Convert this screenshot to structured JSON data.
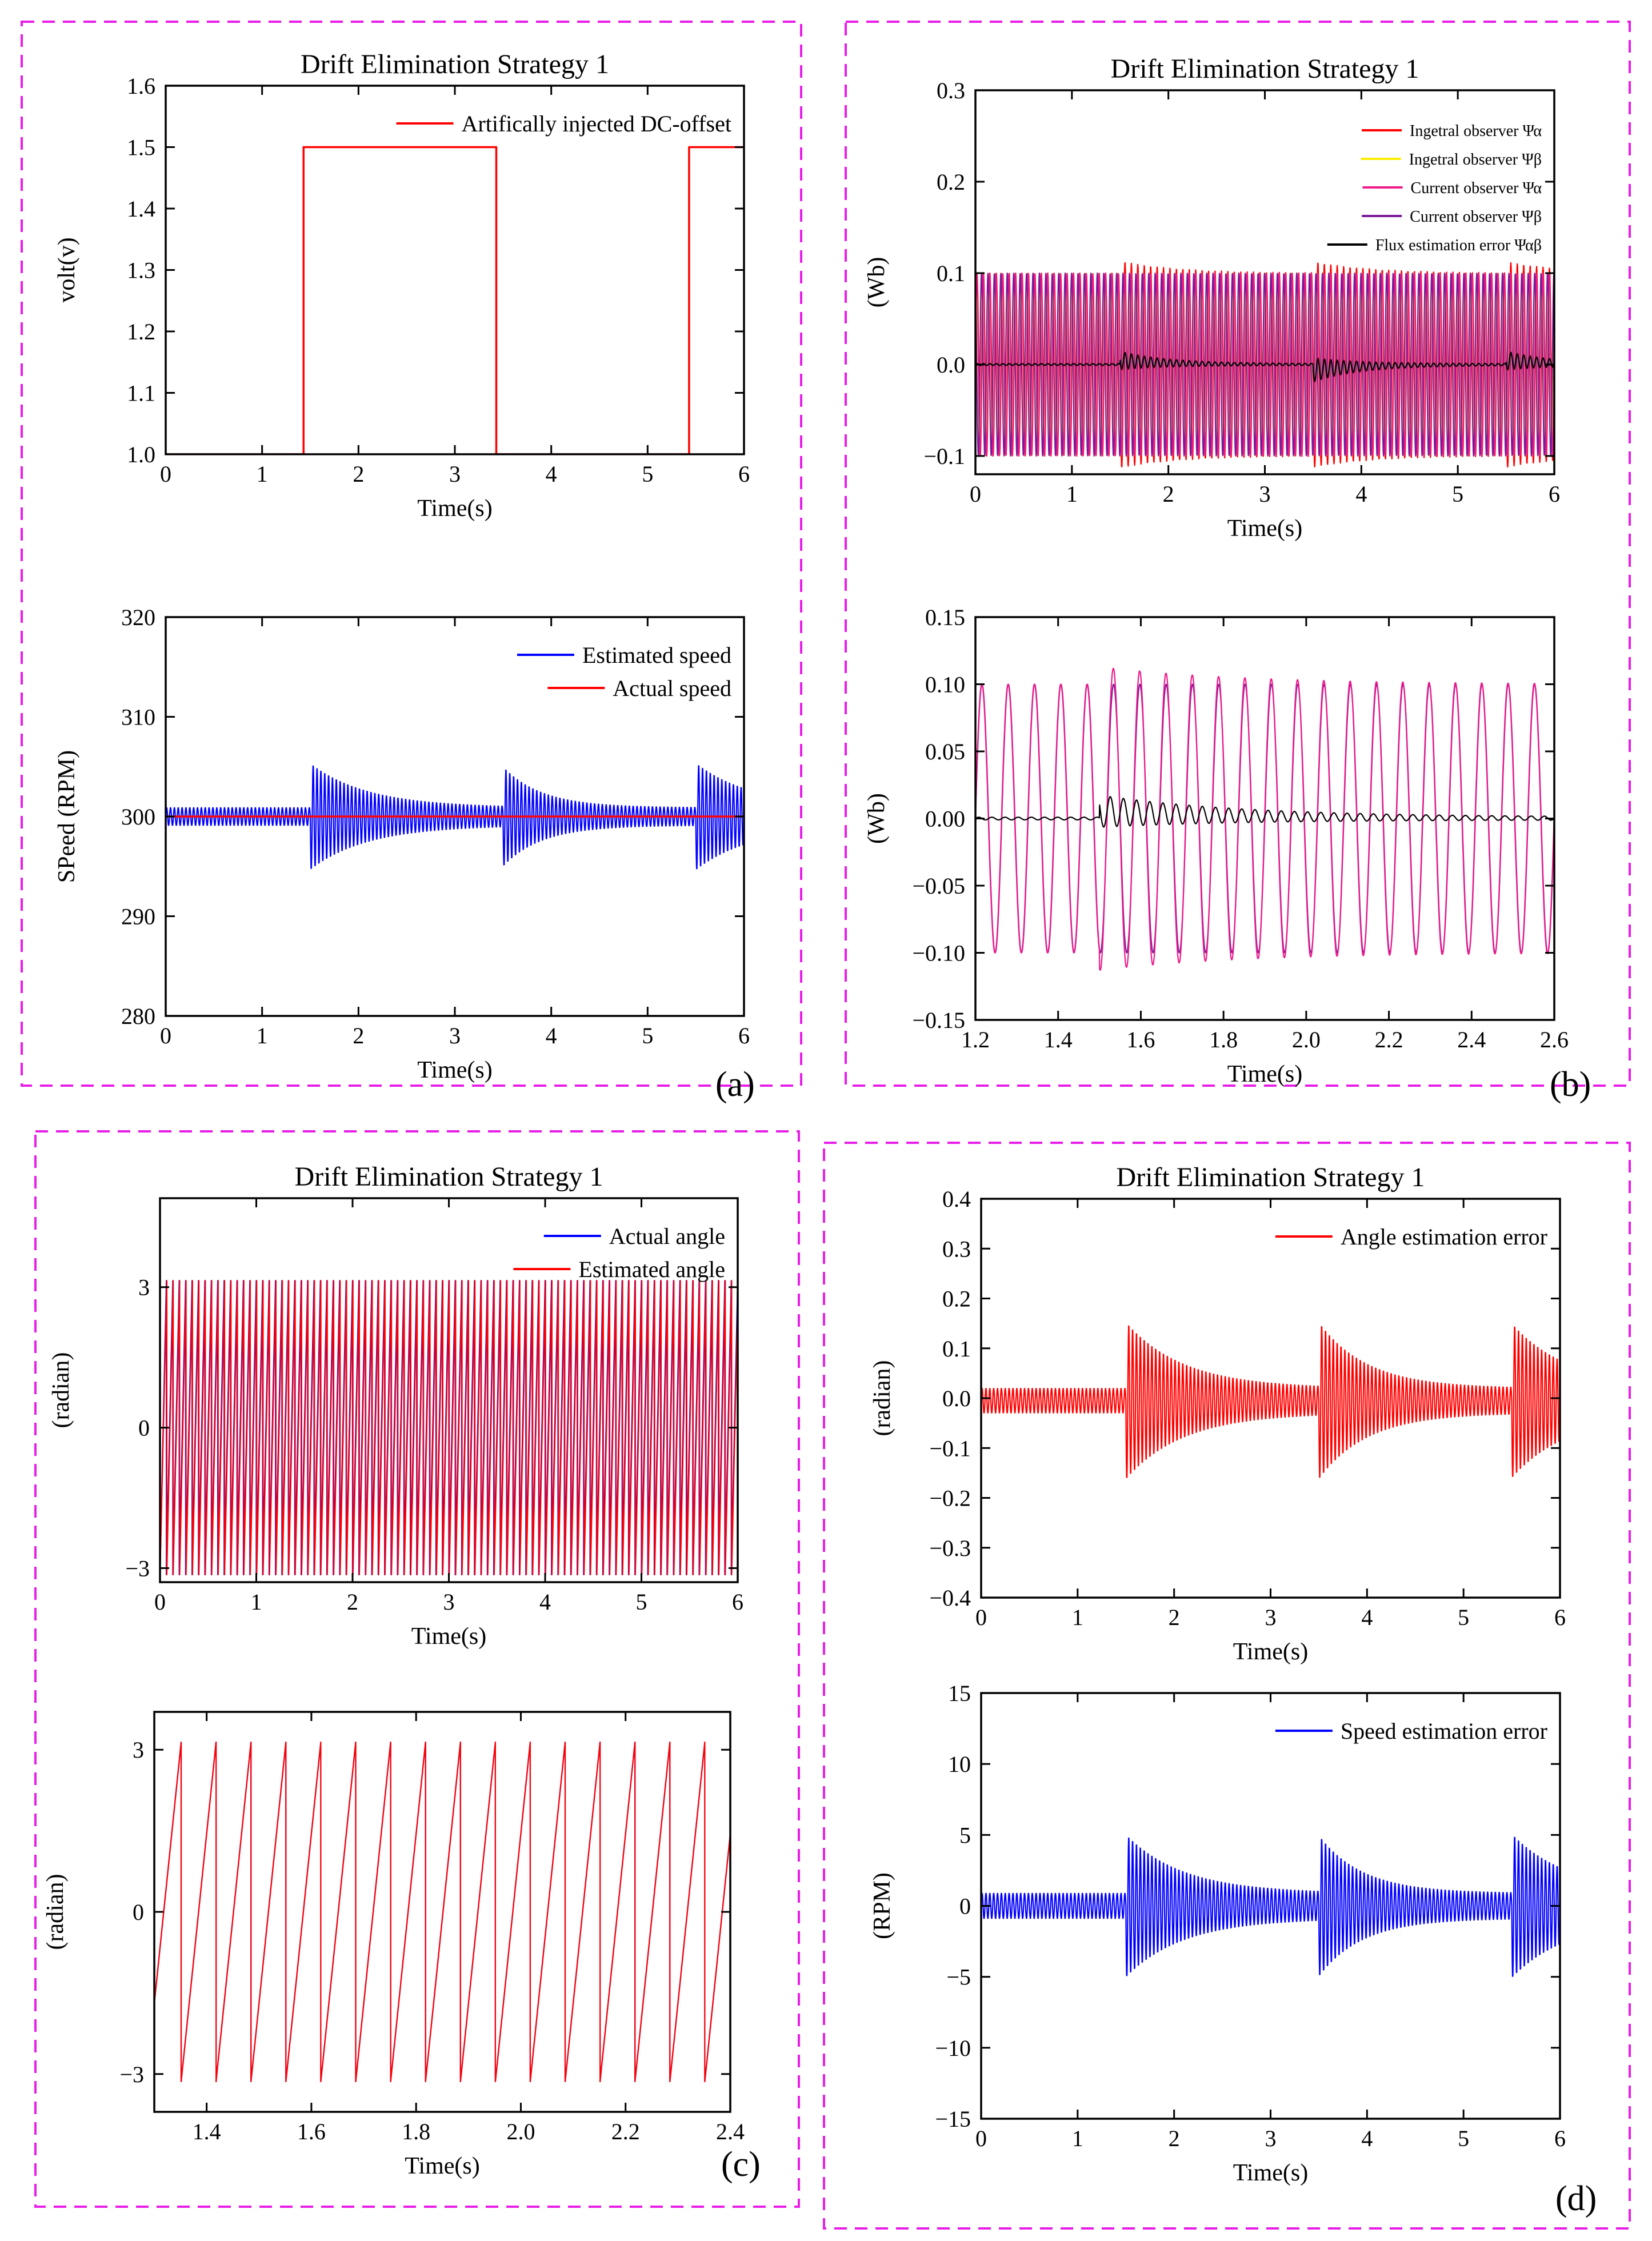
{
  "panel_labels": [
    "(a)",
    "(b)",
    "(c)",
    "(d)"
  ],
  "colors": {
    "border": "#e81ee8",
    "red": "#ff0000",
    "blue": "#0000ff",
    "yellow": "#ffee00",
    "magenta": "#ee1a8a",
    "purple": "#7a1a9a",
    "black": "#000000"
  },
  "chart_data": [
    {
      "id": "a-top",
      "panel": "(a)",
      "type": "line",
      "title": "Drift Elimination Strategy 1",
      "xlabel": "Time(s)",
      "ylabel": "volt(v)",
      "xlim": [
        0,
        6
      ],
      "ylim": [
        1.0,
        1.6
      ],
      "xticks": [
        0,
        1,
        2,
        3,
        4,
        5,
        6
      ],
      "yticks": [
        1.0,
        1.1,
        1.2,
        1.3,
        1.4,
        1.5,
        1.6
      ],
      "tick_decimals": 1,
      "legend": "top-right",
      "series": [
        {
          "name": "Artifically injected DC-offset",
          "color": "#ff0000",
          "kind": "step",
          "x": [
            0,
            1.43,
            1.43,
            3.43,
            3.43,
            5.43,
            5.43,
            6.0
          ],
          "y": [
            1.0,
            1.0,
            1.5,
            1.5,
            1.0,
            1.0,
            1.5,
            1.5
          ]
        }
      ]
    },
    {
      "id": "a-bottom",
      "panel": "(a)",
      "type": "line",
      "xlabel": "Time(s)",
      "ylabel": "SPeed (RPM)",
      "xlim": [
        0,
        6
      ],
      "ylim": [
        280,
        320
      ],
      "xticks": [
        0,
        1,
        2,
        3,
        4,
        5,
        6
      ],
      "yticks": [
        280,
        290,
        300,
        310,
        320
      ],
      "tick_decimals": 0,
      "legend": "top-right",
      "series": [
        {
          "name": "Estimated speed",
          "color": "#0000ff",
          "kind": "osc",
          "x0": 0,
          "x1": 6,
          "cycles": 150,
          "base": 300,
          "amp": 0.9,
          "bursts": [
            {
              "t": 1.5,
              "amp": 4.5,
              "tau": 0.6
            },
            {
              "t": 3.5,
              "amp": 4.0,
              "tau": 0.4
            },
            {
              "t": 5.5,
              "amp": 4.5,
              "tau": 0.6
            }
          ]
        },
        {
          "name": "Actual speed",
          "color": "#ff0000",
          "kind": "line",
          "x": [
            0,
            6
          ],
          "y": [
            300,
            300
          ]
        }
      ]
    },
    {
      "id": "b-top",
      "panel": "(b)",
      "type": "line",
      "title": "Drift Elimination Strategy 1",
      "xlabel": "Time(s)",
      "ylabel": "(Wb)",
      "xlim": [
        0,
        6
      ],
      "ylim": [
        -0.12,
        0.3
      ],
      "xticks": [
        0,
        1,
        2,
        3,
        4,
        5,
        6
      ],
      "yticks": [
        -0.1,
        0.0,
        0.1,
        0.2,
        0.3
      ],
      "tick_decimals": 1,
      "legend": "top-right",
      "legend_small": true,
      "series": [
        {
          "name": "Ingetral observer Ψα",
          "color": "#ff0000",
          "kind": "osc",
          "x0": 0,
          "x1": 6,
          "cycles": 90,
          "base": 0,
          "amp": 0.1,
          "bursts": [
            {
              "t": 1.5,
              "amp": 0.013,
              "tau": 0.6
            },
            {
              "t": 3.5,
              "amp": 0.012,
              "tau": 0.6
            },
            {
              "t": 5.5,
              "amp": 0.012,
              "tau": 0.6
            }
          ]
        },
        {
          "name": "Ingetral observer Ψβ",
          "color": "#ffee00",
          "kind": "osc",
          "x0": 0,
          "x1": 6,
          "cycles": 90,
          "base": 0,
          "amp": 0.1,
          "phase": 1.57
        },
        {
          "name": "Current observer Ψα",
          "color": "#ee1a8a",
          "kind": "osc",
          "x0": 0,
          "x1": 6,
          "cycles": 90,
          "base": 0,
          "amp": 0.1,
          "phase": 0.3
        },
        {
          "name": "Current observer Ψβ",
          "color": "#7a1a9a",
          "kind": "osc",
          "x0": 0,
          "x1": 6,
          "cycles": 90,
          "base": 0,
          "amp": 0.1,
          "phase": 1.9
        },
        {
          "name": "Flux estimation error Ψαβ",
          "color": "#000000",
          "kind": "osc",
          "x0": 0,
          "x1": 6,
          "cycles": 90,
          "base": 0,
          "amp": 0.001,
          "bursts": [
            {
              "t": 1.5,
              "amp": 0.009,
              "tau": 0.5
            },
            {
              "t": 3.5,
              "amp": -0.012,
              "tau": 0.5
            },
            {
              "t": 5.5,
              "amp": 0.009,
              "tau": 0.5
            }
          ]
        }
      ]
    },
    {
      "id": "b-bottom",
      "panel": "(b)",
      "type": "line",
      "xlabel": "Time(s)",
      "ylabel": "(Wb)",
      "xlim": [
        1.2,
        2.6
      ],
      "ylim": [
        -0.15,
        0.15
      ],
      "xticks": [
        1.2,
        1.4,
        1.6,
        1.8,
        2.0,
        2.2,
        2.4,
        2.6
      ],
      "yticks": [
        -0.15,
        -0.1,
        -0.05,
        0.0,
        0.05,
        0.1,
        0.15
      ],
      "tick_decimals_x": 1,
      "tick_decimals": 2,
      "series": [
        {
          "name": "",
          "color": "#7a1a9a",
          "kind": "osc",
          "x0": 1.2,
          "x1": 2.6,
          "cycles": 22,
          "base": 0,
          "amp": 0.1
        },
        {
          "name": "",
          "color": "#ee1a8a",
          "kind": "osc",
          "x0": 1.2,
          "x1": 2.6,
          "cycles": 22,
          "base": 0,
          "amp": 0.1,
          "phase": 0.05,
          "bursts": [
            {
              "t": 1.5,
              "amp": 0.013,
              "tau": 0.35
            }
          ]
        },
        {
          "name": "",
          "color": "#000000",
          "kind": "osc",
          "x0": 1.2,
          "x1": 2.6,
          "cycles": 44,
          "base": 0,
          "amp": 0.001,
          "bursts": [
            {
              "t": 1.5,
              "amp": 0.011,
              "tau": 0.35
            }
          ]
        }
      ]
    },
    {
      "id": "c-top",
      "panel": "(c)",
      "type": "line",
      "title": "Drift Elimination Strategy 1",
      "xlabel": "Time(s)",
      "ylabel": "(radian)",
      "xlim": [
        0,
        6
      ],
      "ylim": [
        -3.3,
        4.9
      ],
      "xticks": [
        0,
        1,
        2,
        3,
        4,
        5,
        6
      ],
      "yticks": [
        -3,
        0,
        3
      ],
      "tick_decimals": 0,
      "legend": "top-right",
      "series": [
        {
          "name": "Actual angle",
          "color": "#0000ff",
          "kind": "saw",
          "x0": 0,
          "x1": 6,
          "cycles": 90,
          "min": -3.14,
          "max": 3.14
        },
        {
          "name": "Estimated angle",
          "color": "#ff0000",
          "kind": "saw",
          "x0": 0,
          "x1": 6,
          "cycles": 90,
          "min": -3.14,
          "max": 3.14,
          "shift": 0.004
        }
      ]
    },
    {
      "id": "c-bottom",
      "panel": "(c)",
      "type": "line",
      "xlabel": "Time(s)",
      "ylabel": "(radian)",
      "xlim": [
        1.3,
        2.4
      ],
      "ylim": [
        -3.7,
        3.7
      ],
      "xticks": [
        1.4,
        1.6,
        1.8,
        2.0,
        2.2,
        2.4
      ],
      "yticks": [
        -3,
        0,
        3
      ],
      "tick_decimals": 0,
      "tick_decimals_x": 1,
      "series": [
        {
          "name": "",
          "color": "#0000ff",
          "kind": "saw",
          "x0": 1.3,
          "x1": 2.4,
          "cycles": 16.5,
          "min": -3.14,
          "max": 3.14,
          "phase0": 0.23
        },
        {
          "name": "",
          "color": "#ff0000",
          "kind": "saw",
          "x0": 1.3,
          "x1": 2.4,
          "cycles": 16.5,
          "min": -3.14,
          "max": 3.14,
          "phase0": 0.23
        }
      ]
    },
    {
      "id": "d-top",
      "panel": "(d)",
      "type": "line",
      "title": "Drift Elimination Strategy 1",
      "xlabel": "Time(s)",
      "ylabel": "(radian)",
      "xlim": [
        0,
        6
      ],
      "ylim": [
        -0.4,
        0.4
      ],
      "xticks": [
        0,
        1,
        2,
        3,
        4,
        5,
        6
      ],
      "yticks": [
        -0.4,
        -0.3,
        -0.2,
        -0.1,
        0.0,
        0.1,
        0.2,
        0.3,
        0.4
      ],
      "tick_decimals": 1,
      "legend": "top-right",
      "series": [
        {
          "name": "Angle estimation error",
          "color": "#ff0000",
          "kind": "osc",
          "x0": 0,
          "x1": 6,
          "cycles": 150,
          "base": -0.005,
          "amp": 0.025,
          "bursts": [
            {
              "t": 1.5,
              "amp": 0.135,
              "tau": 0.6
            },
            {
              "t": 3.5,
              "amp": 0.13,
              "tau": 0.5
            },
            {
              "t": 5.5,
              "amp": 0.13,
              "tau": 0.6
            }
          ]
        }
      ]
    },
    {
      "id": "d-bottom",
      "panel": "(d)",
      "type": "line",
      "xlabel": "Time(s)",
      "ylabel": "(RPM)",
      "xlim": [
        0,
        6
      ],
      "ylim": [
        -15,
        15
      ],
      "xticks": [
        0,
        1,
        2,
        3,
        4,
        5,
        6
      ],
      "yticks": [
        -15,
        -10,
        -5,
        0,
        5,
        10,
        15
      ],
      "tick_decimals": 0,
      "legend": "top-right",
      "series": [
        {
          "name": "Speed estimation error",
          "color": "#0000ff",
          "kind": "osc",
          "x0": 0,
          "x1": 6,
          "cycles": 150,
          "base": 0,
          "amp": 0.9,
          "bursts": [
            {
              "t": 1.5,
              "amp": 4.2,
              "tau": 0.6
            },
            {
              "t": 3.5,
              "amp": 4.0,
              "tau": 0.45
            },
            {
              "t": 5.5,
              "amp": 4.2,
              "tau": 0.6
            }
          ]
        }
      ]
    }
  ]
}
